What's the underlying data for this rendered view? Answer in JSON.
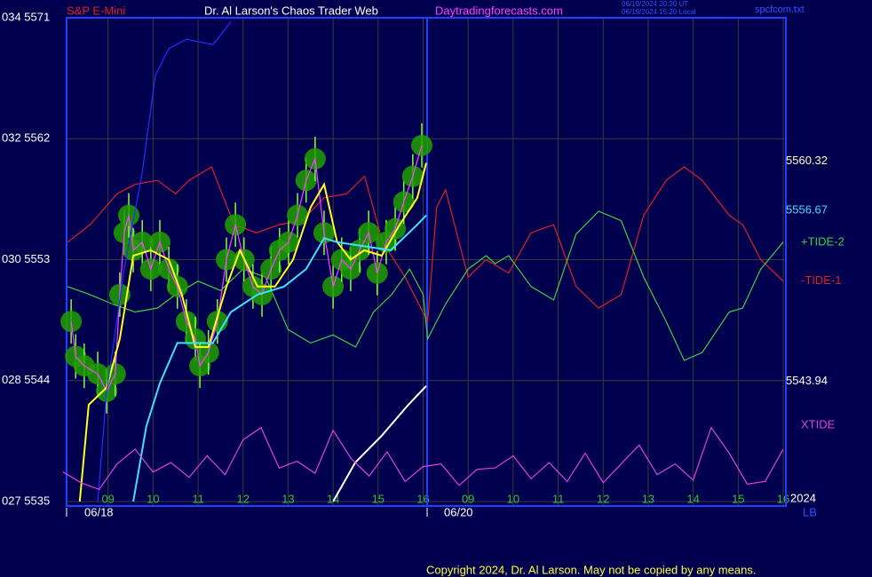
{
  "chart_data": {
    "type": "line",
    "symbol": "S&P E-Mini",
    "title": "Dr. Al Larson's Chaos Trader Web",
    "website": "Daytradingforecasts.com",
    "timestamps": [
      "06/19/2024 20:20 UT",
      "06/19/2024 15:20 Local"
    ],
    "file_name": "spcfcom.txt",
    "dates": [
      "06/18",
      "06/20"
    ],
    "year": "2024",
    "corner_label": "LB",
    "copyright": "Copyright 2024, Dr. Al Larson. May not be copied by any means.",
    "background": "#00004f",
    "frame_color": "#2040ff",
    "grid": true,
    "xlim": [
      0,
      16
    ],
    "ylim": [
      5535,
      5571
    ],
    "xticks": [
      {
        "value": 1,
        "label": "09"
      },
      {
        "value": 2,
        "label": "10"
      },
      {
        "value": 3,
        "label": "11"
      },
      {
        "value": 4,
        "label": "12"
      },
      {
        "value": 5,
        "label": "13"
      },
      {
        "value": 6,
        "label": "14"
      },
      {
        "value": 7,
        "label": "15"
      },
      {
        "value": 8,
        "label": "16"
      },
      {
        "value": 9,
        "label": "09"
      },
      {
        "value": 10,
        "label": "10"
      },
      {
        "value": 11,
        "label": "11"
      },
      {
        "value": 12,
        "label": "12"
      },
      {
        "value": 13,
        "label": "13"
      },
      {
        "value": 14,
        "label": "14"
      },
      {
        "value": 15,
        "label": "15"
      },
      {
        "value": 16,
        "label": "16"
      }
    ],
    "yticks": [
      {
        "value": 5571,
        "label": "034 5571"
      },
      {
        "value": 5562,
        "label": "032 5562"
      },
      {
        "value": 5553,
        "label": "030 5553"
      },
      {
        "value": 5544,
        "label": "028 5544"
      },
      {
        "value": 5535,
        "label": "027 5535"
      }
    ],
    "price_labels": [
      {
        "value": 5560.32,
        "color": "#ffffc0"
      },
      {
        "value": 5556.67,
        "color": "#40e0ff"
      },
      {
        "value": 5543.94,
        "color": "#ffffff"
      }
    ],
    "series": [
      {
        "name": "-TIDE-1",
        "color": "#e02020",
        "style": "line",
        "x": [
          0.1,
          0.6,
          1.2,
          1.6,
          2.1,
          2.5,
          2.8,
          3.3,
          3.8,
          4.3,
          4.8,
          5.3,
          5.8,
          6.3,
          6.7,
          7.1,
          7.6,
          8.1,
          8.3,
          8.5,
          9.0,
          9.4,
          9.9,
          10.4,
          10.9,
          11.4,
          11.9,
          12.4,
          12.9,
          13.4,
          13.8,
          14.2,
          14.8,
          15.1,
          15.5,
          16.0
        ],
        "values": [
          5554.3,
          5555.6,
          5557.9,
          5558.6,
          5558.9,
          5557.9,
          5558.9,
          5559.9,
          5555.6,
          5555.0,
          5555.6,
          5555.9,
          5557.6,
          5557.9,
          5559.2,
          5554.3,
          5551.7,
          5548.4,
          5556.9,
          5558.2,
          5551.7,
          5553.0,
          5552.0,
          5555.0,
          5555.6,
          5551.0,
          5549.4,
          5550.4,
          5556.3,
          5558.9,
          5559.9,
          5558.9,
          5556.3,
          5555.6,
          5553.0,
          5551.4
        ]
      },
      {
        "name": "+TIDE-2",
        "color": "#40d040",
        "style": "line",
        "x": [
          0.1,
          0.6,
          1.1,
          1.6,
          2.1,
          2.5,
          3.0,
          3.5,
          4.0,
          4.5,
          5.0,
          5.5,
          6.0,
          6.5,
          6.9,
          7.3,
          7.7,
          8.0,
          8.1,
          8.5,
          9.0,
          9.4,
          9.6,
          9.9,
          10.4,
          10.9,
          11.4,
          11.9,
          12.4,
          12.9,
          13.4,
          13.8,
          14.2,
          14.8,
          15.1,
          15.5,
          16.0
        ],
        "values": [
          5551.0,
          5550.4,
          5549.7,
          5549.1,
          5549.4,
          5550.4,
          5551.4,
          5550.7,
          5552.3,
          5551.7,
          5547.8,
          5546.8,
          5547.4,
          5546.5,
          5549.1,
          5550.4,
          5552.3,
          5550.4,
          5547.1,
          5549.7,
          5552.3,
          5553.3,
          5552.7,
          5553.3,
          5551.0,
          5550.0,
          5554.9,
          5556.6,
          5555.9,
          5551.7,
          5548.4,
          5545.5,
          5546.1,
          5549.1,
          5549.4,
          5552.3,
          5554.3
        ]
      },
      {
        "color": "#20a000",
        "style": "blobs",
        "x": [
          0.18,
          0.28,
          0.47,
          0.77,
          0.97,
          1.16,
          1.26,
          1.36,
          1.46,
          1.56,
          1.76,
          1.95,
          2.15,
          2.35,
          2.54,
          2.74,
          2.94,
          3.04,
          3.23,
          3.43,
          3.63,
          3.83,
          4.02,
          4.22,
          4.42,
          4.62,
          4.81,
          5.01,
          5.21,
          5.4,
          5.6,
          5.8,
          6.0,
          6.19,
          6.39,
          6.59,
          6.79,
          6.98,
          7.18,
          7.38,
          7.57,
          7.77,
          7.97
        ],
        "values": [
          5548.4,
          5545.8,
          5545.1,
          5544.5,
          5543.2,
          5544.5,
          5550.4,
          5555.0,
          5556.3,
          5553.7,
          5554.3,
          5552.3,
          5554.3,
          5552.3,
          5551.0,
          5548.4,
          5547.1,
          5545.1,
          5546.1,
          5548.4,
          5553.0,
          5555.6,
          5553.0,
          5551.0,
          5550.4,
          5552.3,
          5553.7,
          5554.3,
          5556.3,
          5558.9,
          5560.5,
          5555.0,
          5551.0,
          5553.0,
          5552.3,
          5553.7,
          5555.0,
          5552.0,
          5554.3,
          5555.3,
          5557.3,
          5559.2,
          5561.5
        ]
      },
      {
        "color": "#ff40ff",
        "style": "line",
        "x": [
          0.18,
          0.28,
          0.47,
          0.77,
          0.97,
          1.16,
          1.26,
          1.36,
          1.46,
          1.56,
          1.76,
          1.95,
          2.15,
          2.35,
          2.54,
          2.74,
          2.94,
          3.04,
          3.23,
          3.43,
          3.63,
          3.83,
          4.02,
          4.22,
          4.42,
          4.62,
          4.81,
          5.01,
          5.21,
          5.4,
          5.6,
          5.8,
          6.0,
          6.19,
          6.39,
          6.59,
          6.79,
          6.98,
          7.18,
          7.38,
          7.57,
          7.77,
          7.97
        ],
        "values": [
          5548.4,
          5545.8,
          5545.1,
          5544.5,
          5543.2,
          5544.5,
          5550.4,
          5555.0,
          5556.3,
          5553.7,
          5554.3,
          5552.3,
          5554.3,
          5552.3,
          5551.0,
          5548.4,
          5547.1,
          5545.1,
          5546.1,
          5548.4,
          5553.0,
          5555.6,
          5553.0,
          5551.0,
          5550.4,
          5552.3,
          5553.7,
          5554.3,
          5556.3,
          5558.9,
          5560.5,
          5555.0,
          5551.0,
          5553.0,
          5552.3,
          5553.7,
          5555.0,
          5552.0,
          5554.3,
          5555.3,
          5557.3,
          5559.2,
          5561.5
        ]
      },
      {
        "color": "#ffff20",
        "style": "line",
        "x": [
          0.37,
          0.57,
          0.97,
          1.26,
          1.56,
          1.95,
          2.35,
          2.64,
          2.94,
          3.23,
          3.63,
          3.93,
          4.32,
          4.71,
          5.11,
          5.5,
          5.8,
          6.09,
          6.39,
          6.69,
          7.08,
          7.48,
          7.87,
          8.07
        ],
        "values": [
          5535.0,
          5542.2,
          5543.5,
          5547.1,
          5553.3,
          5553.7,
          5553.0,
          5550.4,
          5546.5,
          5546.5,
          5551.0,
          5553.7,
          5551.0,
          5551.0,
          5553.0,
          5556.9,
          5558.6,
          5554.3,
          5553.0,
          5553.7,
          5553.3,
          5555.6,
          5557.6,
          5560.2
        ]
      },
      {
        "color": "#40e0ff",
        "style": "line",
        "x": [
          1.56,
          1.85,
          2.15,
          2.54,
          3.33,
          3.73,
          4.32,
          4.91,
          5.4,
          5.8,
          6.09,
          6.69,
          7.28,
          7.87,
          8.07
        ],
        "values": [
          5535.0,
          5540.6,
          5543.8,
          5546.8,
          5546.8,
          5549.1,
          5550.4,
          5551.0,
          5552.3,
          5554.6,
          5554.3,
          5554.0,
          5553.7,
          5555.6,
          5556.3
        ]
      },
      {
        "color": "#2030ff",
        "style": "line",
        "x": [
          0.77,
          0.97,
          1.36,
          1.76,
          2.05,
          2.35,
          2.74,
          3.33,
          3.73
        ],
        "values": [
          5535.0,
          5543.2,
          5552.3,
          5559.5,
          5566.7,
          5568.7,
          5569.4,
          5569.0,
          5570.7
        ]
      },
      {
        "color": "#ffffff",
        "style": "line",
        "x": [
          6.0,
          6.49,
          7.08,
          7.67,
          8.07
        ],
        "values": [
          5535.0,
          5537.9,
          5539.9,
          5542.2,
          5543.6
        ]
      },
      {
        "name": "XTIDE",
        "color": "#e040e0",
        "style": "line",
        "x": [
          0,
          0.4,
          0.8,
          1.2,
          1.6,
          2.0,
          2.4,
          2.8,
          3.2,
          3.6,
          4.0,
          4.4,
          4.8,
          5.2,
          5.6,
          6.0,
          6.4,
          6.8,
          7.2,
          7.6,
          8.0,
          8.4,
          8.8,
          9.2,
          9.6,
          10.0,
          10.4,
          10.8,
          11.2,
          11.6,
          12.0,
          12.4,
          12.8,
          13.2,
          13.6,
          14.0,
          14.4,
          14.8,
          15.2,
          15.6,
          16.0
        ],
        "values": [
          5537.2,
          5536.4,
          5535.9,
          5537.8,
          5538.9,
          5537.2,
          5537.9,
          5536.8,
          5538.4,
          5537.0,
          5539.6,
          5540.5,
          5537.5,
          5538.0,
          5537.1,
          5540.3,
          5538.2,
          5536.9,
          5538.7,
          5536.5,
          5537.6,
          5537.8,
          5536.2,
          5537.4,
          5537.5,
          5538.4,
          5536.7,
          5537.9,
          5536.5,
          5538.6,
          5536.4,
          5537.8,
          5539.2,
          5537.0,
          5537.8,
          5536.6,
          5540.5,
          5538.6,
          5536.3,
          5536.5,
          5538.9
        ]
      }
    ]
  }
}
